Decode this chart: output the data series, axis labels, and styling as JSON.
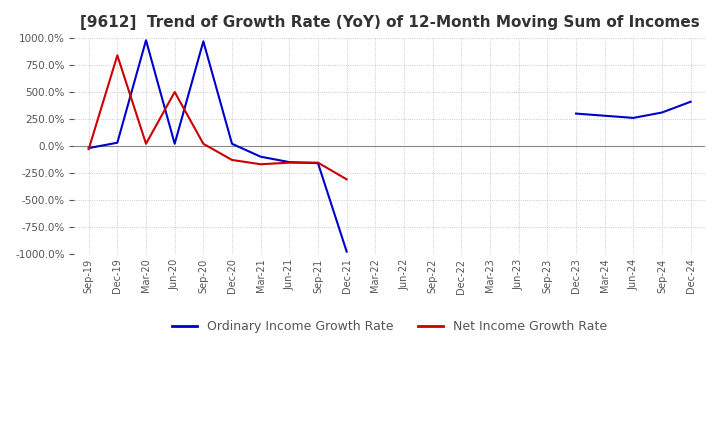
{
  "title": "[9612]  Trend of Growth Rate (YoY) of 12-Month Moving Sum of Incomes",
  "title_fontsize": 11,
  "ylim": [
    -1000,
    1000
  ],
  "yticks": [
    1000,
    750,
    500,
    250,
    0,
    -250,
    -500,
    -750,
    -1000
  ],
  "background_color": "#ffffff",
  "grid_color": "#bbbbbb",
  "ordinary_color": "#0000cc",
  "net_color": "#cc0000",
  "legend_ordinary": "Ordinary Income Growth Rate",
  "legend_net": "Net Income Growth Rate",
  "x_dates": [
    "Sep-19",
    "Dec-19",
    "Mar-20",
    "Jun-20",
    "Sep-20",
    "Dec-20",
    "Mar-21",
    "Jun-21",
    "Sep-21",
    "Dec-21",
    "Mar-22",
    "Jun-22",
    "Sep-22",
    "Dec-22",
    "Mar-23",
    "Jun-23",
    "Sep-23",
    "Dec-23",
    "Mar-24",
    "Jun-24",
    "Sep-24",
    "Dec-24"
  ],
  "ordinary_values": [
    -20,
    30,
    980,
    20,
    970,
    20,
    -100,
    -150,
    -160,
    -980,
    null,
    null,
    null,
    null,
    null,
    null,
    null,
    300,
    280,
    260,
    310,
    410
  ],
  "net_values": [
    -30,
    840,
    20,
    500,
    20,
    -130,
    -170,
    -155,
    -155,
    -310,
    null,
    null,
    null,
    null,
    null,
    null,
    null,
    null,
    null,
    null,
    null,
    null
  ]
}
